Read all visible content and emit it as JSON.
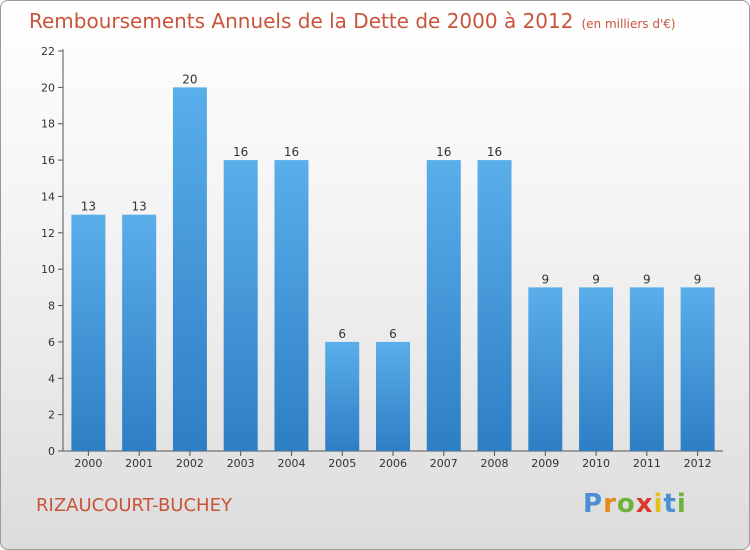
{
  "title": "Remboursements Annuels de la Dette de 2000 à 2012",
  "subtitle": "(en milliers d'€)",
  "commune": "RIZAUCOURT-BUCHEY",
  "logo": {
    "letters": [
      "P",
      "r",
      "o",
      "x",
      "i",
      "t",
      "i"
    ]
  },
  "colors": {
    "bar_top": "#5aaeea",
    "bar_bottom": "#2e7ec4",
    "title": "#c8543a"
  },
  "chart_data": {
    "type": "bar",
    "categories": [
      "2000",
      "2001",
      "2002",
      "2003",
      "2004",
      "2005",
      "2006",
      "2007",
      "2008",
      "2009",
      "2010",
      "2011",
      "2012"
    ],
    "values": [
      13,
      13,
      20,
      16,
      16,
      6,
      6,
      16,
      16,
      9,
      9,
      9,
      9
    ],
    "yticks": [
      0,
      2,
      4,
      6,
      8,
      10,
      12,
      14,
      16,
      18,
      20,
      22
    ],
    "ylim": [
      0,
      22
    ],
    "grid": false,
    "data_labels": true
  }
}
